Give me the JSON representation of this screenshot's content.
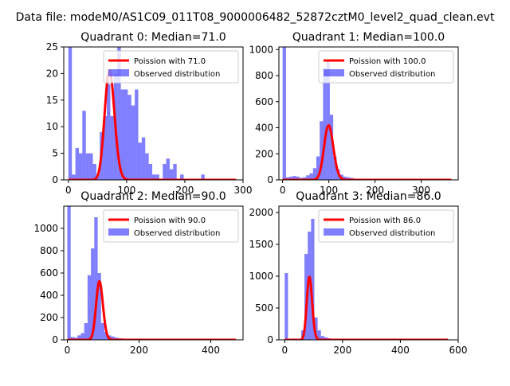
{
  "suptitle": "Data file: modeM0/AS1C09_011T08_9000006482_52872cztM0_level2_quad_clean.evt",
  "colors": {
    "hist": "#0000ff",
    "hist_opacity": 0.5,
    "poisson": "#ff0000"
  },
  "chart_data": [
    {
      "type": "bar",
      "title": "Quadrant 0: Median=71.0",
      "xlim": [
        -8,
        300
      ],
      "ylim": [
        0,
        25
      ],
      "xticks": [
        0,
        100,
        200,
        300
      ],
      "yticks": [
        0,
        5,
        10,
        15,
        20,
        25
      ],
      "legend": [
        "Poission with 71.0",
        "Observed distribution"
      ],
      "legend_loc": "upper right",
      "bin_start": 0,
      "bin_width": 6,
      "hist": [
        25,
        1,
        6,
        5,
        13,
        5,
        5,
        3,
        1,
        9,
        12,
        18,
        12,
        20,
        25,
        17,
        17,
        16,
        14,
        17,
        7,
        8,
        5,
        3,
        1,
        1,
        0,
        3,
        4,
        2,
        3,
        0,
        1,
        0,
        0,
        0,
        0,
        0,
        1,
        0,
        0,
        0,
        0,
        0,
        0,
        0,
        0,
        0,
        0,
        0
      ],
      "poisson": {
        "mean": 71.0,
        "scale": 435,
        "x": [
          0,
          288
        ]
      }
    },
    {
      "type": "bar",
      "title": "Quadrant 1: Median=100.0",
      "xlim": [
        -8,
        380
      ],
      "ylim": [
        0,
        1020
      ],
      "xticks": [
        0,
        100,
        200,
        300
      ],
      "yticks": [
        0,
        200,
        400,
        600,
        800,
        1000
      ],
      "legend": [
        "Poission with 100.0",
        "Observed distribution"
      ],
      "legend_loc": "upper right",
      "bin_start": 0,
      "bin_width": 7.3,
      "hist": [
        1020,
        20,
        25,
        30,
        25,
        15,
        20,
        35,
        50,
        90,
        180,
        450,
        860,
        920,
        500,
        180,
        80,
        40,
        25,
        20,
        15,
        10,
        8,
        7,
        5,
        4,
        3,
        3,
        2,
        2,
        2,
        1,
        1,
        1,
        1,
        1,
        1,
        1,
        1,
        1,
        1,
        1,
        1,
        1,
        1,
        1,
        1,
        1,
        1,
        1
      ],
      "poisson": {
        "mean": 100.0,
        "scale": 10500,
        "x": [
          0,
          365
        ]
      }
    },
    {
      "type": "bar",
      "title": "Quadrant 2: Median=90.0",
      "xlim": [
        -10,
        490
      ],
      "ylim": [
        0,
        1200
      ],
      "xticks": [
        0,
        200,
        400
      ],
      "yticks": [
        0,
        200,
        400,
        600,
        800,
        1000
      ],
      "legend": [
        "Poission with 90.0",
        "Observed distribution"
      ],
      "legend_loc": "upper right",
      "bin_start": 0,
      "bin_width": 9.4,
      "hist": [
        1200,
        25,
        20,
        40,
        60,
        150,
        580,
        820,
        1100,
        600,
        150,
        70,
        40,
        30,
        20,
        15,
        12,
        10,
        8,
        6,
        5,
        4,
        3,
        3,
        2,
        2,
        2,
        2,
        1,
        1,
        1,
        1,
        1,
        1,
        1,
        1,
        1,
        1,
        1,
        1,
        1,
        1,
        1,
        1,
        1,
        1,
        1,
        1,
        1,
        1
      ],
      "poisson": {
        "mean": 90.0,
        "scale": 12500,
        "x": [
          0,
          470
        ]
      }
    },
    {
      "type": "bar",
      "title": "Quadrant 3: Median=86.0",
      "xlim": [
        -20,
        600
      ],
      "ylim": [
        0,
        2100
      ],
      "xticks": [
        0,
        200,
        400,
        600
      ],
      "yticks": [
        0,
        500,
        1000,
        1500,
        2000
      ],
      "legend": [
        "Poission with 86.0",
        "Observed distribution"
      ],
      "legend_loc": "upper right",
      "bin_start": 0,
      "bin_width": 11.4,
      "hist": [
        1050,
        0,
        0,
        0,
        0,
        150,
        1350,
        1700,
        1900,
        350,
        150,
        60,
        40,
        25,
        15,
        10,
        8,
        5,
        4,
        3,
        3,
        2,
        2,
        2,
        1,
        1,
        1,
        1,
        1,
        1,
        1,
        1,
        1,
        1,
        1,
        1,
        1,
        1,
        1,
        1,
        1,
        1,
        1,
        1,
        1,
        1,
        1,
        1,
        1,
        1
      ],
      "poisson": {
        "mean": 86.0,
        "scale": 23000,
        "x": [
          0,
          565
        ]
      }
    }
  ]
}
